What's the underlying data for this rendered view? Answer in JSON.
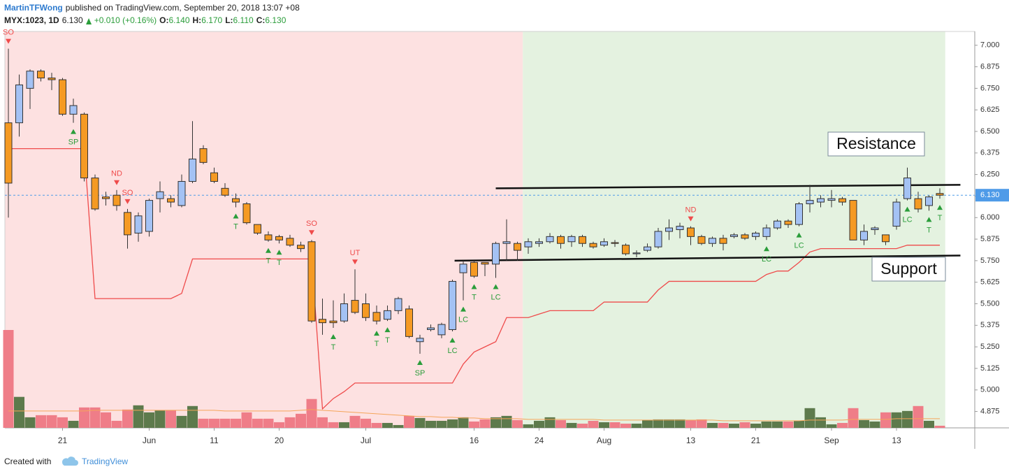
{
  "header": {
    "author": "MartinTFWong",
    "published": "published on TradingView.com, September 20, 2018 13:07 +08",
    "symbol": "MYX:1023, 1D",
    "last": "6.130",
    "change": "+0.010 (+0.16%)",
    "ohlc": [
      {
        "key": "O:",
        "value": "6.140"
      },
      {
        "key": "H:",
        "value": "6.170"
      },
      {
        "key": "L:",
        "value": "6.110"
      },
      {
        "key": "C:",
        "value": "6.130"
      }
    ]
  },
  "footer": {
    "text": "Created with",
    "brand": "TradingView"
  },
  "chart_data": {
    "type": "candlestick",
    "categories": [
      null,
      null,
      null,
      null,
      null,
      "21",
      null,
      null,
      null,
      null,
      null,
      null,
      null,
      "Jun",
      null,
      null,
      null,
      null,
      null,
      "11",
      null,
      null,
      null,
      null,
      null,
      "20",
      null,
      null,
      null,
      null,
      null,
      null,
      null,
      "Jul",
      null,
      null,
      null,
      null,
      null,
      null,
      null,
      null,
      null,
      "16",
      null,
      null,
      null,
      null,
      null,
      "24",
      null,
      null,
      null,
      null,
      null,
      "Aug",
      null,
      null,
      null,
      null,
      null,
      null,
      null,
      "13",
      null,
      null,
      null,
      null,
      null,
      "21",
      null,
      null,
      null,
      null,
      null,
      null,
      "Sep",
      null,
      null,
      null,
      null,
      null,
      "13",
      null,
      null,
      null,
      null
    ],
    "open": [
      6.55,
      6.55,
      6.75,
      6.85,
      6.81,
      6.8,
      6.6,
      6.6,
      6.23,
      6.12,
      6.13,
      6.03,
      5.91,
      5.92,
      6.11,
      6.11,
      6.07,
      6.21,
      6.4,
      6.26,
      6.17,
      6.11,
      6.08,
      5.96,
      5.9,
      5.89,
      5.88,
      5.84,
      5.86,
      5.41,
      5.4,
      5.4,
      5.52,
      5.5,
      5.45,
      5.41,
      5.46,
      5.47,
      5.28,
      5.35,
      5.32,
      5.35,
      5.68,
      5.74,
      5.74,
      5.73,
      5.85,
      5.85,
      5.83,
      5.85,
      5.86,
      5.89,
      5.86,
      5.89,
      5.85,
      5.84,
      5.855,
      5.84,
      5.79,
      5.81,
      5.83,
      5.92,
      5.93,
      5.94,
      5.89,
      5.85,
      5.88,
      5.89,
      5.9,
      5.89,
      5.89,
      5.94,
      5.98,
      5.96,
      6.08,
      6.09,
      6.1,
      6.11,
      6.1,
      5.87,
      5.93,
      5.9,
      5.95,
      6.11,
      6.11,
      6.07,
      6.14
    ],
    "high": [
      6.98,
      6.83,
      6.86,
      6.86,
      6.84,
      6.81,
      6.69,
      6.61,
      6.25,
      6.15,
      6.16,
      6.05,
      6.03,
      6.11,
      6.21,
      6.13,
      6.25,
      6.56,
      6.42,
      6.29,
      6.2,
      6.14,
      6.09,
      5.96,
      5.92,
      5.9,
      5.9,
      5.86,
      5.87,
      5.53,
      5.52,
      5.56,
      5.7,
      5.56,
      5.49,
      5.49,
      5.54,
      5.49,
      5.32,
      5.38,
      5.39,
      5.64,
      5.75,
      5.75,
      5.74,
      5.86,
      5.99,
      5.86,
      5.88,
      5.88,
      5.91,
      5.9,
      5.9,
      5.9,
      5.86,
      5.88,
      5.87,
      5.85,
      5.81,
      5.85,
      5.94,
      5.99,
      5.97,
      5.95,
      5.9,
      5.89,
      5.9,
      5.91,
      5.91,
      5.92,
      5.96,
      5.99,
      5.99,
      6.09,
      6.19,
      6.13,
      6.16,
      6.12,
      6.1,
      5.96,
      5.95,
      5.9,
      6.11,
      6.29,
      6.15,
      6.13,
      6.17
    ],
    "low": [
      6.0,
      6.47,
      6.63,
      6.79,
      6.74,
      6.59,
      6.55,
      6.21,
      6.04,
      6.07,
      6.04,
      5.82,
      5.86,
      5.89,
      6.03,
      6.06,
      6.06,
      6.2,
      6.31,
      6.2,
      6.12,
      6.06,
      5.96,
      5.9,
      5.86,
      5.85,
      5.83,
      5.8,
      5.39,
      5.32,
      5.36,
      5.39,
      5.44,
      5.4,
      5.38,
      5.4,
      5.44,
      5.3,
      5.21,
      5.34,
      5.3,
      5.34,
      5.52,
      5.65,
      5.66,
      5.65,
      5.75,
      5.75,
      5.79,
      5.83,
      5.85,
      5.82,
      5.83,
      5.83,
      5.82,
      5.83,
      5.83,
      5.78,
      5.77,
      5.8,
      5.82,
      5.87,
      5.88,
      5.84,
      5.84,
      5.83,
      5.81,
      5.88,
      5.87,
      5.87,
      5.87,
      5.93,
      5.94,
      5.95,
      6.03,
      6.06,
      6.06,
      6.07,
      5.87,
      5.84,
      5.9,
      5.84,
      5.93,
      6.1,
      6.03,
      6.04,
      6.11
    ],
    "close": [
      6.2,
      6.77,
      6.85,
      6.81,
      6.8,
      6.6,
      6.65,
      6.23,
      6.05,
      6.11,
      6.07,
      5.9,
      6.01,
      6.1,
      6.15,
      6.09,
      6.21,
      6.34,
      6.32,
      6.21,
      6.13,
      6.09,
      5.97,
      5.91,
      5.87,
      5.87,
      5.84,
      5.82,
      5.4,
      5.39,
      5.39,
      5.5,
      5.45,
      5.42,
      5.4,
      5.46,
      5.53,
      5.31,
      5.3,
      5.36,
      5.38,
      5.63,
      5.73,
      5.66,
      5.73,
      5.85,
      5.86,
      5.81,
      5.86,
      5.86,
      5.89,
      5.85,
      5.89,
      5.85,
      5.83,
      5.86,
      5.85,
      5.79,
      5.795,
      5.83,
      5.92,
      5.94,
      5.95,
      5.89,
      5.85,
      5.88,
      5.85,
      5.9,
      5.88,
      5.91,
      5.94,
      5.98,
      5.96,
      6.08,
      6.1,
      6.11,
      6.11,
      6.09,
      5.87,
      5.92,
      5.94,
      5.86,
      6.09,
      6.23,
      6.05,
      6.12,
      6.13
    ],
    "volume": [
      139,
      44,
      15,
      18,
      18,
      15,
      10,
      29,
      29,
      22,
      10,
      26,
      32,
      22,
      25,
      25,
      17,
      31,
      13,
      13,
      13,
      13,
      22,
      13,
      13,
      8,
      15,
      20,
      41,
      15,
      8,
      8,
      17,
      13,
      7,
      7,
      4,
      17,
      14,
      10,
      10,
      12,
      15,
      9,
      12,
      15,
      17,
      11,
      5,
      10,
      15,
      11,
      7,
      6,
      10,
      8,
      8,
      6,
      6,
      11,
      12,
      12,
      12,
      11,
      12,
      7,
      7,
      6,
      8,
      6,
      9,
      9,
      9,
      10,
      28,
      15,
      5,
      7,
      28,
      11,
      9,
      22,
      22,
      24,
      31,
      10,
      3
    ],
    "volume_ma": [
      24,
      24,
      24,
      24,
      24,
      24,
      24,
      24,
      25,
      25,
      25,
      25,
      25,
      25,
      25,
      25,
      25,
      25,
      25,
      25,
      24,
      24,
      24,
      24,
      24,
      24,
      24,
      25,
      26,
      25,
      24,
      23,
      22,
      21,
      20,
      19,
      18,
      17,
      16,
      16,
      15,
      15,
      14,
      14,
      13,
      13,
      13,
      13,
      12,
      12,
      12,
      12,
      12,
      12,
      12,
      11,
      11,
      11,
      11,
      11,
      11,
      11,
      11,
      11,
      11,
      11,
      10,
      10,
      10,
      10,
      10,
      10,
      10,
      10,
      11,
      11,
      11,
      11,
      12,
      12,
      12,
      12,
      13,
      13,
      13,
      13,
      13
    ],
    "stop": [
      6.4,
      6.4,
      6.4,
      6.4,
      6.4,
      6.4,
      6.4,
      6.4,
      5.53,
      5.53,
      5.53,
      5.53,
      5.53,
      5.53,
      5.53,
      5.53,
      5.56,
      5.76,
      5.76,
      5.76,
      5.76,
      5.76,
      5.76,
      5.76,
      5.76,
      5.76,
      5.76,
      5.76,
      5.76,
      4.89,
      4.95,
      4.99,
      5.04,
      5.04,
      5.04,
      5.04,
      5.04,
      5.04,
      5.04,
      5.04,
      5.04,
      5.04,
      5.15,
      5.22,
      5.25,
      5.28,
      5.42,
      5.42,
      5.42,
      5.44,
      5.46,
      5.46,
      5.46,
      5.46,
      5.46,
      5.51,
      5.51,
      5.51,
      5.51,
      5.51,
      5.58,
      5.63,
      5.63,
      5.63,
      5.63,
      5.63,
      5.63,
      5.63,
      5.63,
      5.63,
      5.67,
      5.69,
      5.69,
      5.74,
      5.8,
      5.82,
      5.82,
      5.82,
      5.82,
      5.82,
      5.82,
      5.82,
      5.82,
      5.84,
      5.84,
      5.84,
      5.84
    ],
    "colors": {
      "up": "#a4c2f4",
      "down": "#f59a23",
      "volume_up": "#5d7a4c",
      "volume_down": "#ef7d88",
      "stop": "#ef4b4b",
      "volume_ma": "#f5a55a",
      "last": "#4f9be8"
    },
    "regions": [
      {
        "from": -0.5,
        "to": 47.5,
        "color": "#fde1e1"
      },
      {
        "from": 47.5,
        "to": 86.5,
        "color": "#e4f2e0"
      }
    ],
    "last_price": {
      "value": 6.13,
      "label": "6.130"
    },
    "trendlines": [
      {
        "name": "Resistance",
        "x": [
          45,
          87.9
        ],
        "y": [
          6.17,
          6.19
        ]
      },
      {
        "name": "Support",
        "x": [
          41.2,
          87.9
        ],
        "y": [
          5.75,
          5.78
        ]
      }
    ],
    "annotations": [
      {
        "text": "SO",
        "index": 0,
        "position": "above"
      },
      {
        "text": "SP",
        "index": 6,
        "position": "below"
      },
      {
        "text": "ND",
        "index": 10,
        "position": "above"
      },
      {
        "text": "SO",
        "index": 11,
        "position": "above"
      },
      {
        "text": "T",
        "index": 21,
        "position": "below"
      },
      {
        "text": "T",
        "index": 24,
        "position": "below"
      },
      {
        "text": "T",
        "index": 25,
        "position": "below"
      },
      {
        "text": "SO",
        "index": 28,
        "position": "above"
      },
      {
        "text": "T",
        "index": 30,
        "position": "below"
      },
      {
        "text": "UT",
        "index": 32,
        "position": "above"
      },
      {
        "text": "T",
        "index": 34,
        "position": "below"
      },
      {
        "text": "T",
        "index": 35,
        "position": "below"
      },
      {
        "text": "SP",
        "index": 38,
        "position": "below"
      },
      {
        "text": "LC",
        "index": 41,
        "position": "below"
      },
      {
        "text": "LC",
        "index": 42,
        "position": "below"
      },
      {
        "text": "T",
        "index": 43,
        "position": "below"
      },
      {
        "text": "LC",
        "index": 45,
        "position": "below"
      },
      {
        "text": "ND",
        "index": 63,
        "position": "above"
      },
      {
        "text": "LC",
        "index": 70,
        "position": "below"
      },
      {
        "text": "LC",
        "index": 73,
        "position": "below"
      },
      {
        "text": "LC",
        "index": 83,
        "position": "below"
      },
      {
        "text": "T",
        "index": 85,
        "position": "below"
      },
      {
        "text": "T",
        "index": 86,
        "position": "below"
      }
    ],
    "ylim": [
      4.78,
      7.08
    ],
    "yticks": [
      {
        "value": 7,
        "label": "7.000"
      },
      {
        "value": 6.875,
        "label": "6.875"
      },
      {
        "value": 6.75,
        "label": "6.750"
      },
      {
        "value": 6.625,
        "label": "6.625"
      },
      {
        "value": 6.5,
        "label": "6.500"
      },
      {
        "value": 6.375,
        "label": "6.375"
      },
      {
        "value": 6.25,
        "label": "6.250"
      },
      {
        "value": 6.125,
        "label": "6.125"
      },
      {
        "value": 6,
        "label": "6.000"
      },
      {
        "value": 5.875,
        "label": "5.875"
      },
      {
        "value": 5.75,
        "label": "5.750"
      },
      {
        "value": 5.625,
        "label": "5.625"
      },
      {
        "value": 5.5,
        "label": "5.500"
      },
      {
        "value": 5.375,
        "label": "5.375"
      },
      {
        "value": 5.25,
        "label": "5.250"
      },
      {
        "value": 5.125,
        "label": "5.125"
      },
      {
        "value": 5,
        "label": "5.000"
      },
      {
        "value": 4.875,
        "label": "4.875"
      }
    ],
    "grid": false
  }
}
